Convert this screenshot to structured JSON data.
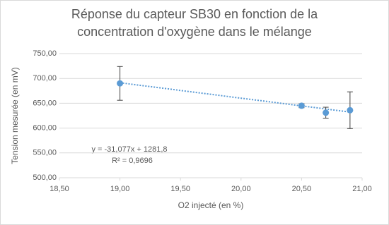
{
  "chart_data": {
    "type": "scatter",
    "title": [
      "Réponse du capteur SB30 en fonction de la",
      "concentration d'oxygène dans le mélange"
    ],
    "x_label": "O2 injecté (en %)",
    "y_label": "Tension mesurée (en mV)",
    "series": [
      {
        "color": "#5b9bd5",
        "x": [
          19.0,
          20.5,
          20.7,
          20.9
        ],
        "values": [
          690,
          645,
          631,
          636
        ],
        "errors": [
          34,
          4,
          11,
          37
        ]
      }
    ],
    "trendline": {
      "slope": -31.077,
      "intercept": 1281.8,
      "equation": "y = -31,077x + 1281,8",
      "r2": "R² = 0,9696"
    },
    "xlim": [
      18.5,
      21.0
    ],
    "xticks": [
      {
        "value": 18.5,
        "label": "18,50"
      },
      {
        "value": 19.0,
        "label": "19,00"
      },
      {
        "value": 19.5,
        "label": "19,50"
      },
      {
        "value": 20.0,
        "label": "20,00"
      },
      {
        "value": 20.5,
        "label": "20,50"
      },
      {
        "value": 21.0,
        "label": "21,00"
      }
    ],
    "ylim": [
      500,
      750
    ],
    "yticks": [
      {
        "value": 500,
        "label": "500,00"
      },
      {
        "value": 550,
        "label": "550,00"
      },
      {
        "value": 600,
        "label": "600,00"
      },
      {
        "value": 650,
        "label": "650,00"
      },
      {
        "value": 700,
        "label": "700,00"
      },
      {
        "value": 750,
        "label": "750,00"
      }
    ],
    "grid": true
  }
}
